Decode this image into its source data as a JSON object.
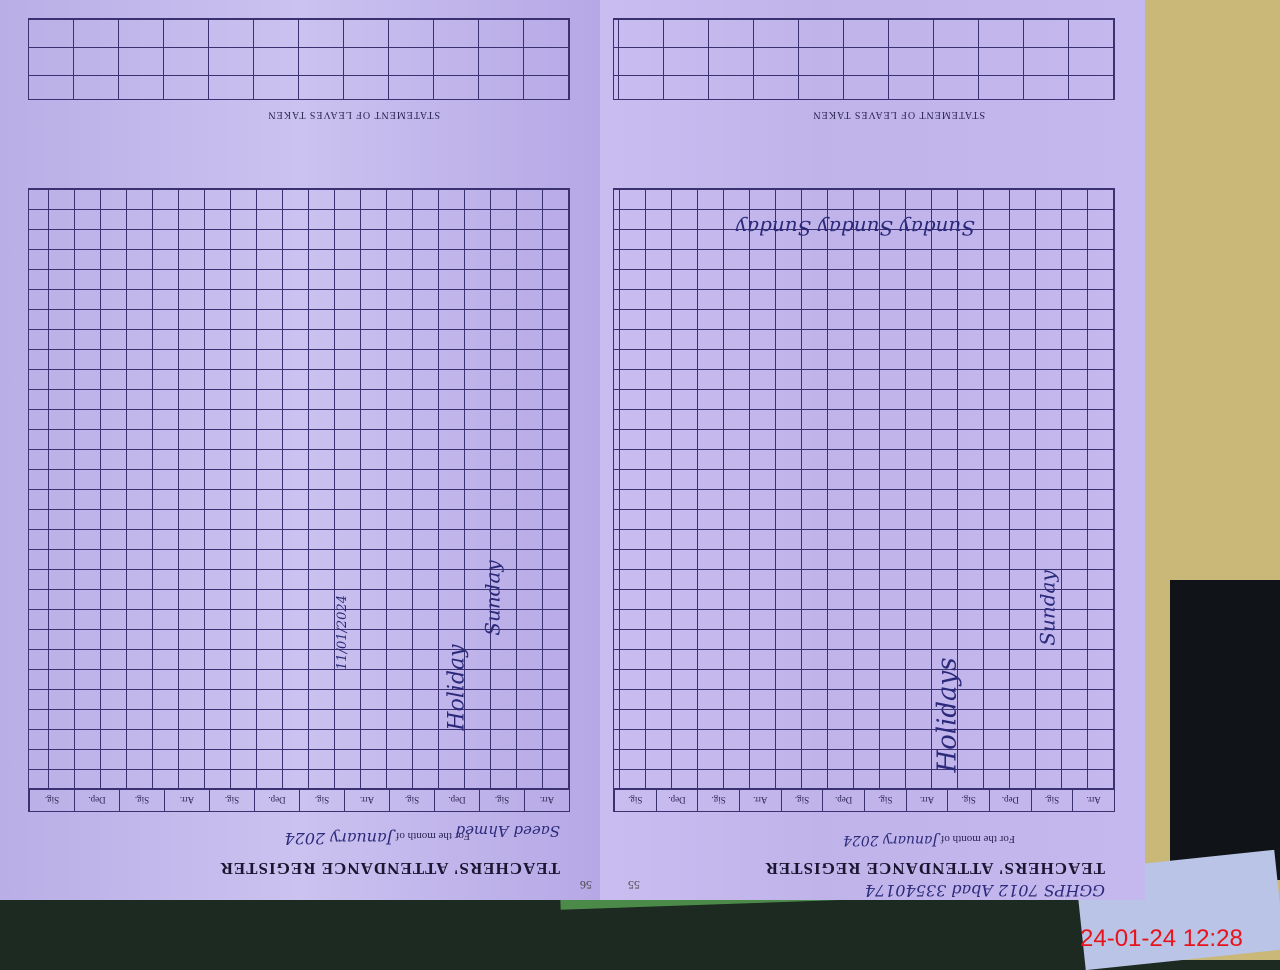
{
  "left_page": {
    "page_number": "56",
    "title": "TEACHERS' ATTENDANCE REGISTER",
    "month_label": "For the month of",
    "month_value": "January 2024",
    "name": "Saeed Ahmed",
    "columns": [
      "Arr.",
      "Sig.",
      "Dep.",
      "Sig.",
      "Arr.",
      "Sig.",
      "Dep.",
      "Sig.",
      "Arr.",
      "Sig.",
      "Dep.",
      "Sig."
    ],
    "notes": [
      "Holiday",
      "Sunday",
      "11/01/2024"
    ],
    "leaves_heading": "STATEMENT OF LEAVES TAKEN"
  },
  "right_page": {
    "page_number": "55",
    "title": "TEACHERS' ATTENDANCE REGISTER",
    "header_note": "GGHPS 7012 Abad 33540174",
    "month_label": "For the month of",
    "month_value": "January 2024",
    "columns": [
      "Arr.",
      "Sig.",
      "Dep.",
      "Sig.",
      "Arr.",
      "Sig.",
      "Dep.",
      "Sig.",
      "Arr.",
      "Sig.",
      "Dep.",
      "Sig."
    ],
    "notes": [
      "Holidays",
      "Sunday",
      "Sunday Sunday Sunday"
    ],
    "leaves_heading": "STATEMENT OF LEAVES TAKEN"
  },
  "timestamp": "24-01-24  12:28",
  "colors": {
    "paper": "#c4b8ee",
    "ink": "#2b2a7a",
    "timestamp": "#e8141c"
  }
}
